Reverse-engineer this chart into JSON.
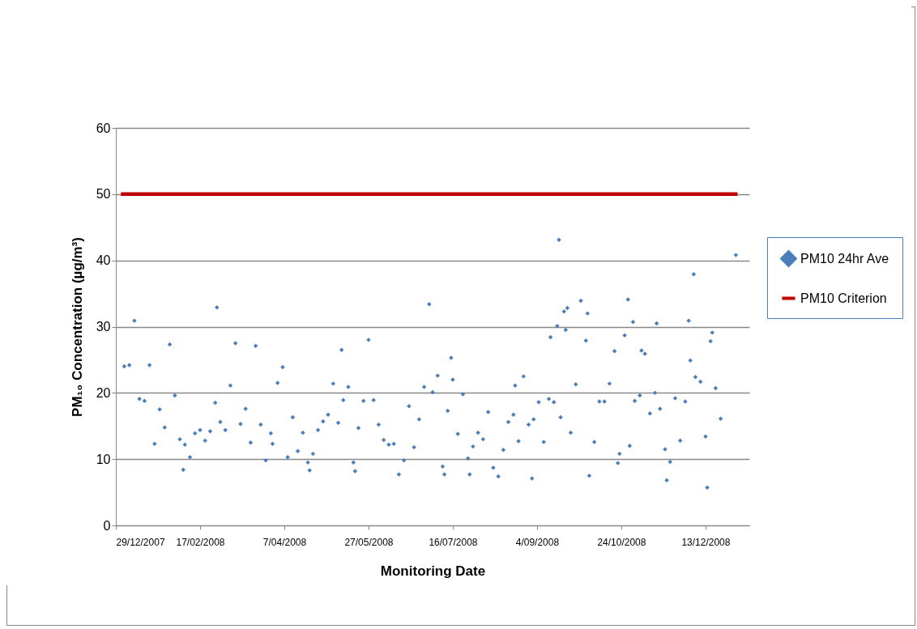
{
  "chart_data": {
    "type": "scatter",
    "xlabel": "Monitoring Date",
    "ylabel": "PM₁₀ Concentration (µg/m³)",
    "xlim": [
      "2007-12-29",
      "2009-01-08"
    ],
    "xticks": [
      {
        "value": "2007-12-29",
        "label": "29/12/2007"
      },
      {
        "value": "2008-02-17",
        "label": "17/02/2008"
      },
      {
        "value": "2008-04-07",
        "label": "7/04/2008"
      },
      {
        "value": "2008-05-27",
        "label": "27/05/2008"
      },
      {
        "value": "2008-07-16",
        "label": "16/07/2008"
      },
      {
        "value": "2008-09-04",
        "label": "4/09/2008"
      },
      {
        "value": "2008-10-24",
        "label": "24/10/2008"
      },
      {
        "value": "2008-12-13",
        "label": "13/12/2008"
      }
    ],
    "ylim": [
      0,
      60
    ],
    "yticks": [
      0,
      10,
      20,
      30,
      40,
      50,
      60
    ],
    "grid": "y",
    "legend": "right",
    "series": [
      {
        "name": "PM10 24hr Ave",
        "color": "#4a7ebb",
        "marker": "diamond",
        "x": [
          "2008-01-03",
          "2008-01-06",
          "2008-01-09",
          "2008-01-12",
          "2008-01-15",
          "2008-01-18",
          "2008-01-21",
          "2008-01-24",
          "2008-01-27",
          "2008-01-30",
          "2008-02-02",
          "2008-02-05",
          "2008-02-07",
          "2008-02-08",
          "2008-02-11",
          "2008-02-14",
          "2008-02-17",
          "2008-02-20",
          "2008-02-23",
          "2008-02-26",
          "2008-02-27",
          "2008-02-29",
          "2008-03-03",
          "2008-03-06",
          "2008-03-09",
          "2008-03-12",
          "2008-03-15",
          "2008-03-18",
          "2008-03-21",
          "2008-03-24",
          "2008-03-27",
          "2008-03-30",
          "2008-03-31",
          "2008-04-03",
          "2008-04-06",
          "2008-04-09",
          "2008-04-12",
          "2008-04-15",
          "2008-04-18",
          "2008-04-21",
          "2008-04-22",
          "2008-04-24",
          "2008-04-27",
          "2008-04-30",
          "2008-05-03",
          "2008-05-06",
          "2008-05-09",
          "2008-05-11",
          "2008-05-12",
          "2008-05-15",
          "2008-05-18",
          "2008-05-19",
          "2008-05-21",
          "2008-05-24",
          "2008-05-27",
          "2008-05-30",
          "2008-06-02",
          "2008-06-05",
          "2008-06-08",
          "2008-06-11",
          "2008-06-14",
          "2008-06-17",
          "2008-06-20",
          "2008-06-23",
          "2008-06-26",
          "2008-06-29",
          "2008-07-02",
          "2008-07-04",
          "2008-07-07",
          "2008-07-10",
          "2008-07-11",
          "2008-07-13",
          "2008-07-15",
          "2008-07-16",
          "2008-07-19",
          "2008-07-22",
          "2008-07-25",
          "2008-07-26",
          "2008-07-28",
          "2008-07-31",
          "2008-08-03",
          "2008-08-06",
          "2008-08-09",
          "2008-08-12",
          "2008-08-15",
          "2008-08-18",
          "2008-08-21",
          "2008-08-22",
          "2008-08-24",
          "2008-08-27",
          "2008-08-30",
          "2008-09-01",
          "2008-09-02",
          "2008-09-05",
          "2008-09-08",
          "2008-09-11",
          "2008-09-12",
          "2008-09-14",
          "2008-09-16",
          "2008-09-17",
          "2008-09-18",
          "2008-09-20",
          "2008-09-21",
          "2008-09-22",
          "2008-09-24",
          "2008-09-27",
          "2008-09-30",
          "2008-10-03",
          "2008-10-04",
          "2008-10-05",
          "2008-10-08",
          "2008-10-11",
          "2008-10-14",
          "2008-10-17",
          "2008-10-20",
          "2008-10-22",
          "2008-10-23",
          "2008-10-26",
          "2008-10-28",
          "2008-10-29",
          "2008-10-31",
          "2008-11-01",
          "2008-11-04",
          "2008-11-05",
          "2008-11-07",
          "2008-11-10",
          "2008-11-13",
          "2008-11-14",
          "2008-11-16",
          "2008-11-19",
          "2008-11-20",
          "2008-11-22",
          "2008-11-25",
          "2008-11-28",
          "2008-12-01",
          "2008-12-03",
          "2008-12-04",
          "2008-12-06",
          "2008-12-07",
          "2008-12-10",
          "2008-12-13",
          "2008-12-14",
          "2008-12-16",
          "2008-12-17",
          "2008-12-19",
          "2008-12-22",
          "2008-12-31"
        ],
        "values": [
          24.0,
          24.2,
          30.9,
          19.1,
          18.8,
          24.2,
          12.3,
          17.5,
          14.8,
          27.3,
          19.6,
          13.0,
          8.4,
          12.2,
          10.3,
          13.9,
          14.4,
          12.8,
          14.2,
          18.5,
          32.9,
          15.6,
          14.4,
          21.1,
          27.5,
          15.3,
          17.6,
          12.5,
          27.1,
          15.2,
          9.8,
          13.9,
          12.3,
          21.5,
          23.9,
          10.3,
          16.3,
          11.2,
          14.0,
          9.5,
          8.3,
          10.8,
          14.4,
          15.7,
          16.7,
          21.4,
          15.5,
          26.5,
          18.9,
          20.9,
          9.5,
          8.2,
          14.7,
          18.8,
          28.0,
          18.9,
          15.2,
          12.9,
          12.2,
          12.3,
          7.7,
          9.8,
          18.0,
          11.8,
          16.0,
          20.9,
          33.4,
          20.1,
          22.6,
          8.9,
          7.7,
          17.3,
          25.3,
          22.0,
          13.8,
          19.8,
          10.1,
          7.7,
          11.9,
          14.0,
          13.0,
          17.1,
          8.7,
          7.4,
          11.4,
          15.6,
          16.7,
          21.1,
          12.7,
          22.5,
          15.2,
          7.1,
          16.0,
          18.6,
          12.6,
          19.1,
          28.4,
          18.6,
          30.1,
          43.1,
          16.3,
          32.3,
          29.5,
          32.8,
          14.0,
          21.3,
          33.9,
          27.9,
          32.0,
          7.5,
          12.6,
          18.7,
          18.7,
          21.4,
          26.3,
          9.4,
          10.8,
          28.7,
          34.1,
          12.0,
          30.7,
          18.8,
          19.6,
          26.4,
          25.9,
          16.9,
          20.0,
          30.5,
          17.6,
          11.5,
          6.8,
          9.6,
          19.2,
          12.8,
          18.7,
          30.9,
          24.9,
          37.9,
          22.4,
          21.7,
          13.4,
          5.7,
          27.8,
          29.1,
          20.7,
          16.1,
          40.8
        ]
      },
      {
        "name": "PM10 Criterion",
        "type": "line",
        "color": "#c00000",
        "line_style": "solid",
        "x": [
          "2008-01-01",
          "2009-01-01"
        ],
        "values": [
          50,
          50
        ]
      }
    ]
  }
}
